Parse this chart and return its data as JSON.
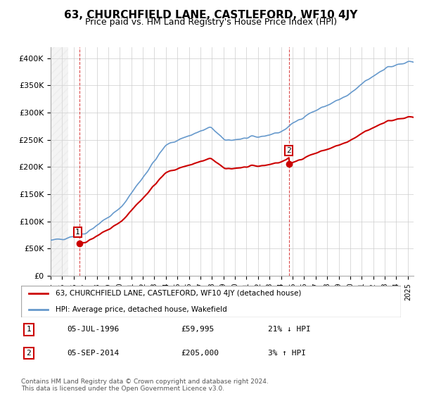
{
  "title": "63, CHURCHFIELD LANE, CASTLEFORD, WF10 4JY",
  "subtitle": "Price paid vs. HM Land Registry's House Price Index (HPI)",
  "sale1_date": "1996-07-05",
  "sale1_price": 59995,
  "sale2_date": "2014-09-05",
  "sale2_price": 205000,
  "sale1_label": "1",
  "sale2_label": "2",
  "hpi_line_color": "#6699cc",
  "price_line_color": "#cc0000",
  "marker_color": "#cc0000",
  "background_hatch_color": "#e8e8e8",
  "ylabel": "",
  "ylim": [
    0,
    420000
  ],
  "yticks": [
    0,
    50000,
    100000,
    150000,
    200000,
    250000,
    300000,
    350000,
    400000
  ],
  "ytick_labels": [
    "£0",
    "£50K",
    "£100K",
    "£150K",
    "£200K",
    "£250K",
    "£300K",
    "£350K",
    "£400K"
  ],
  "x_start_year": 1994,
  "x_end_year": 2025,
  "legend_line1": "63, CHURCHFIELD LANE, CASTLEFORD, WF10 4JY (detached house)",
  "legend_line2": "HPI: Average price, detached house, Wakefield",
  "annotation1_date": "05-JUL-1996",
  "annotation1_price": "£59,995",
  "annotation1_hpi": "21% ↓ HPI",
  "annotation2_date": "05-SEP-2014",
  "annotation2_price": "£205,000",
  "annotation2_hpi": "3% ↑ HPI",
  "footer": "Contains HM Land Registry data © Crown copyright and database right 2024.\nThis data is licensed under the Open Government Licence v3.0.",
  "grid_color": "#cccccc",
  "title_fontsize": 11,
  "subtitle_fontsize": 9,
  "tick_fontsize": 8
}
